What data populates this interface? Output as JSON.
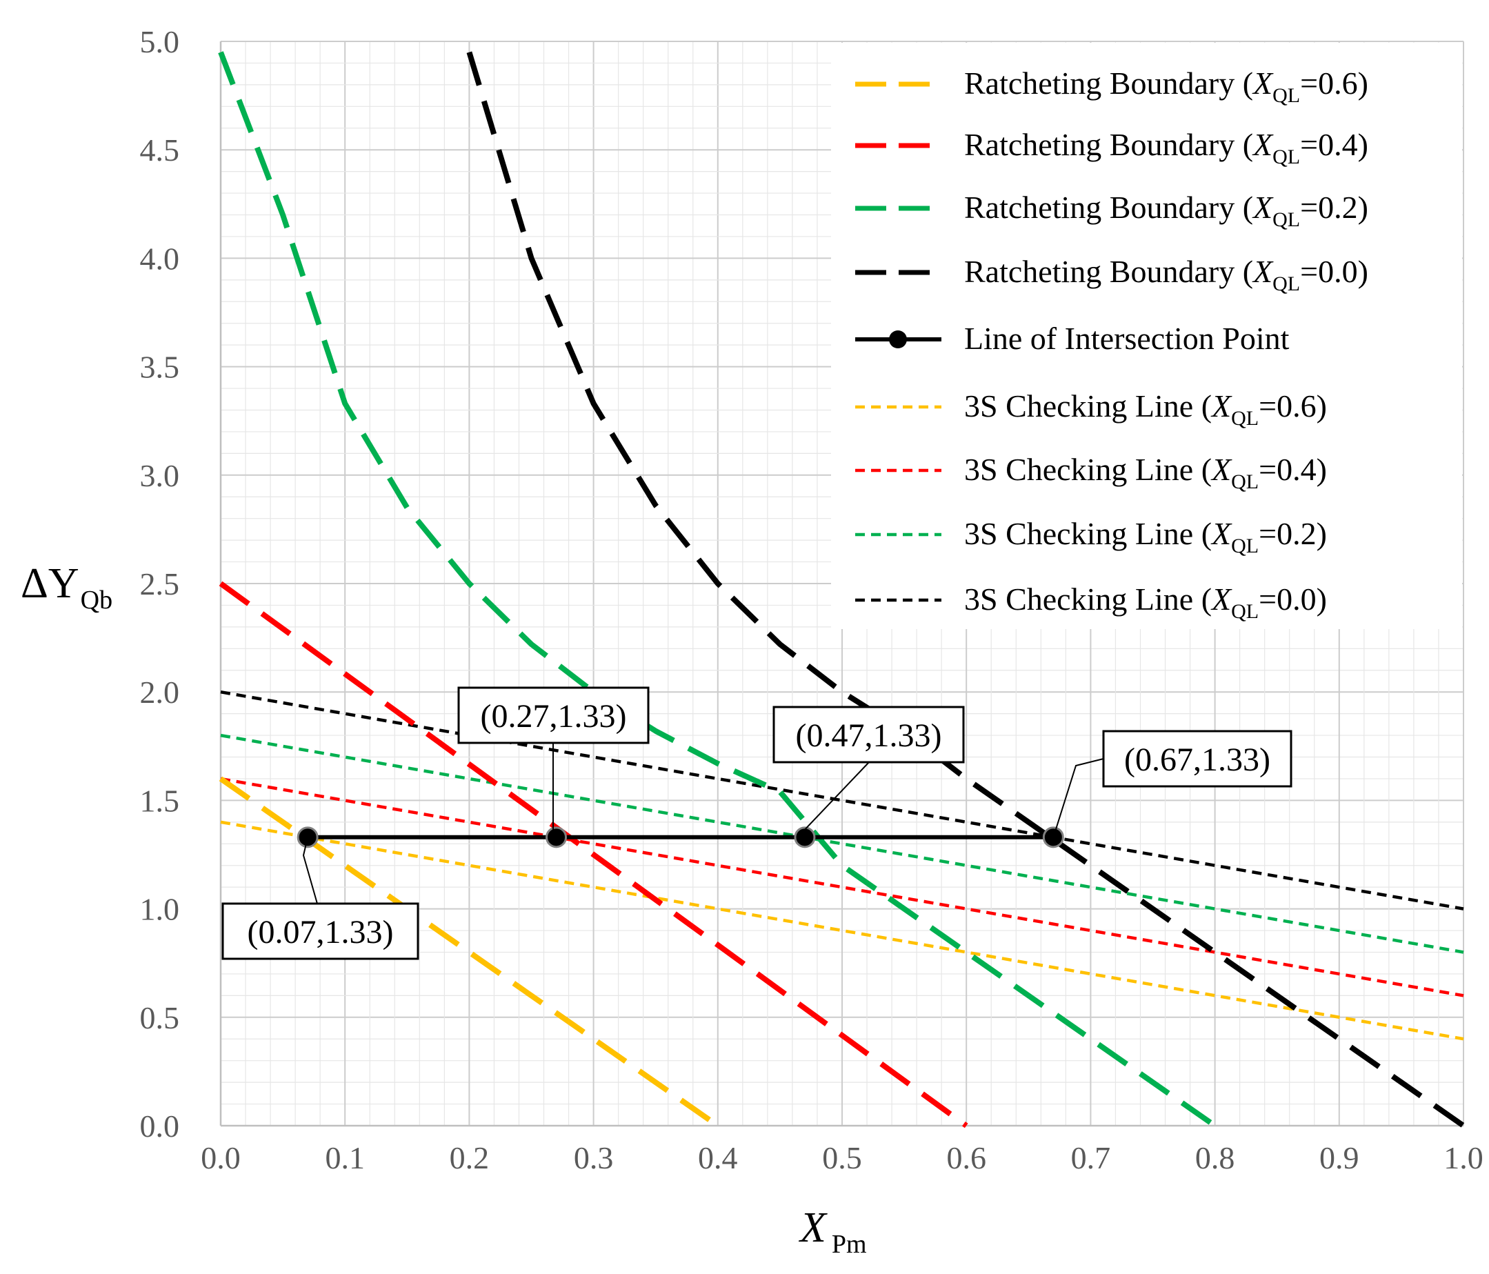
{
  "chart_data": {
    "type": "line",
    "xlabel": "X",
    "xlabel_sub": "Pm",
    "ylabel": "ΔY",
    "ylabel_sub": "Qb",
    "xlim": [
      0,
      1
    ],
    "ylim": [
      0,
      5
    ],
    "grid": true,
    "legend_position": "top-right",
    "x_ticks": [
      "0.0",
      "0.1",
      "0.2",
      "0.3",
      "0.4",
      "0.5",
      "0.6",
      "0.7",
      "0.8",
      "0.9",
      "1.0"
    ],
    "y_ticks": [
      "0.0",
      "0.5",
      "1.0",
      "1.5",
      "2.0",
      "2.5",
      "3.0",
      "3.5",
      "4.0",
      "4.5",
      "5.0"
    ],
    "series": [
      {
        "name": "Ratcheting Boundary",
        "param": "0.6",
        "color": "#FFC000",
        "style": "long-dash",
        "x": [
          0.0,
          0.4
        ],
        "y": [
          1.6,
          0.0
        ]
      },
      {
        "name": "Ratcheting Boundary",
        "param": "0.4",
        "color": "#FF0000",
        "style": "long-dash",
        "x": [
          0.0,
          0.6
        ],
        "y": [
          2.5,
          0.0
        ]
      },
      {
        "name": "Ratcheting Boundary",
        "param": "0.2",
        "color": "#00B050",
        "style": "long-dash",
        "x": [
          0.0,
          0.05,
          0.1,
          0.15,
          0.2,
          0.25,
          0.3,
          0.35,
          0.4,
          0.45,
          0.5,
          0.6,
          0.7,
          0.8
        ],
        "y": [
          4.95,
          4.2,
          3.33,
          2.85,
          2.5,
          2.22,
          2.0,
          1.82,
          1.67,
          1.54,
          1.2,
          0.8,
          0.4,
          0.0
        ]
      },
      {
        "name": "Ratcheting Boundary",
        "param": "0.0",
        "color": "#000000",
        "style": "long-dash",
        "x": [
          0.2,
          0.25,
          0.3,
          0.35,
          0.4,
          0.45,
          0.5,
          0.55,
          0.6,
          0.7,
          0.8,
          0.9,
          1.0
        ],
        "y": [
          4.95,
          4.0,
          3.33,
          2.86,
          2.5,
          2.22,
          2.0,
          1.82,
          1.6,
          1.2,
          0.8,
          0.4,
          0.0
        ]
      },
      {
        "name": "Line of Intersection Point",
        "param": "",
        "color": "#000000",
        "style": "solid-marker",
        "x": [
          0.07,
          0.27,
          0.47,
          0.67
        ],
        "y": [
          1.33,
          1.33,
          1.33,
          1.33
        ]
      },
      {
        "name": "3S Checking Line",
        "param": "0.6",
        "color": "#FFC000",
        "style": "short-dash",
        "x": [
          0.0,
          1.0
        ],
        "y": [
          1.4,
          0.4
        ]
      },
      {
        "name": "3S Checking Line",
        "param": "0.4",
        "color": "#FF0000",
        "style": "short-dash",
        "x": [
          0.0,
          1.0
        ],
        "y": [
          1.6,
          0.6
        ]
      },
      {
        "name": "3S Checking Line",
        "param": "0.2",
        "color": "#00B050",
        "style": "short-dash",
        "x": [
          0.0,
          1.0
        ],
        "y": [
          1.8,
          0.8
        ]
      },
      {
        "name": "3S Checking Line",
        "param": "0.0",
        "color": "#000000",
        "style": "short-dash",
        "x": [
          0.0,
          1.0
        ],
        "y": [
          2.0,
          1.0
        ]
      }
    ],
    "legend_var": "X",
    "legend_sub": "QL",
    "annotations": [
      {
        "text": "(0.07,1.33)",
        "x": 0.07,
        "y": 1.33
      },
      {
        "text": "(0.27,1.33)",
        "x": 0.27,
        "y": 1.33
      },
      {
        "text": "(0.47,1.33)",
        "x": 0.47,
        "y": 1.33
      },
      {
        "text": "(0.67,1.33)",
        "x": 0.67,
        "y": 1.33
      }
    ]
  }
}
